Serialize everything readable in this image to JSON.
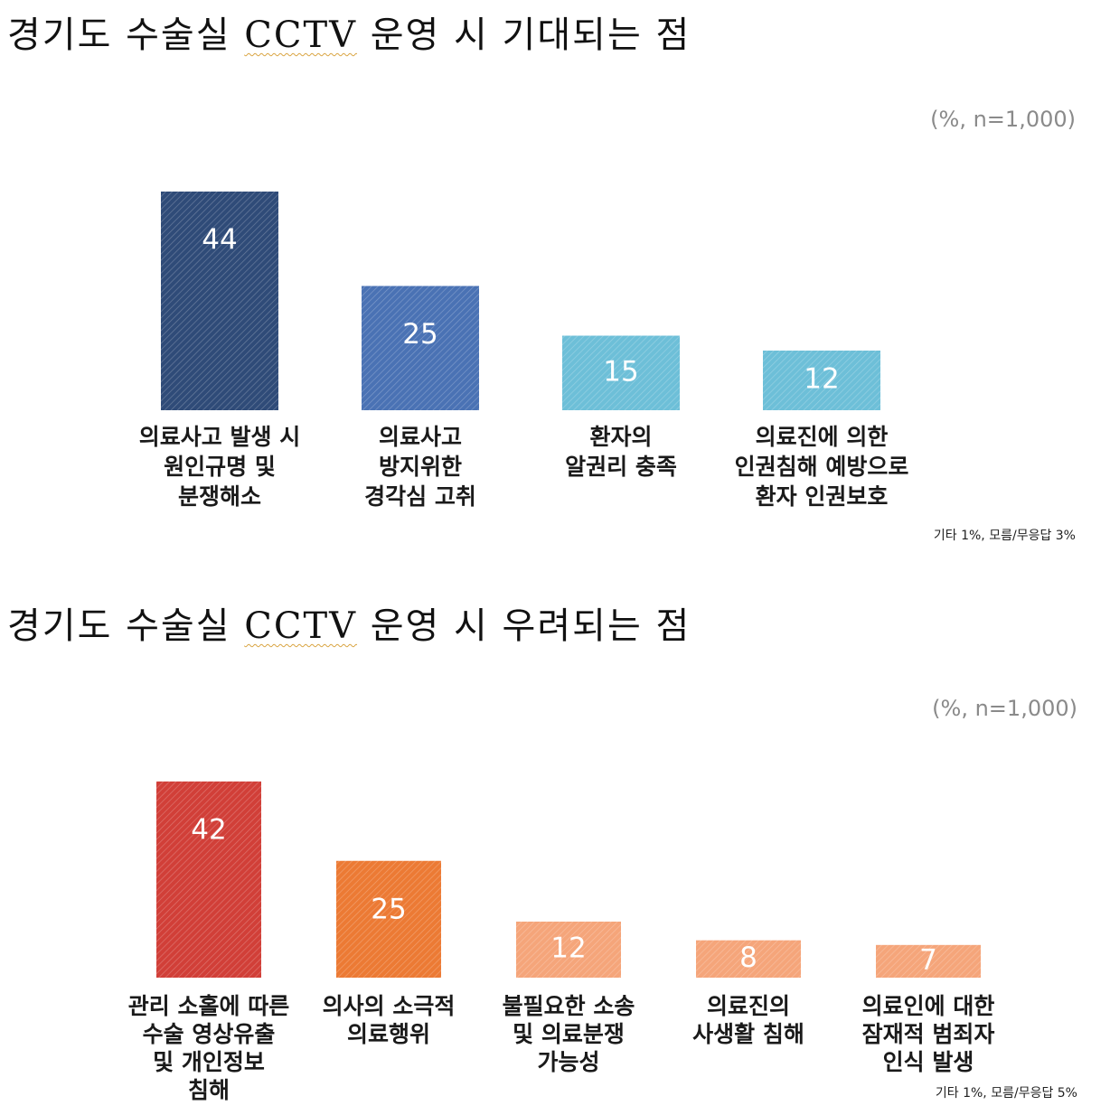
{
  "charts": [
    {
      "title_prefix": "경기도 수술실 ",
      "title_cctv": "CCTV",
      "title_suffix": " 운영 시 기대되는 점",
      "unit_note": "(%, n=1,000)",
      "footnote": "기타 1%, 모름/무응답 3%"
    },
    {
      "title_prefix": "경기도 수술실 ",
      "title_cctv": "CCTV",
      "title_suffix": " 운영 시 우려되는 점",
      "unit_note": "(%, n=1,000)",
      "footnote": "기타 1%, 모름/무응답 5%"
    }
  ],
  "chart_data": [
    {
      "type": "bar",
      "title": "경기도 수술실 CCTV 운영 시 기대되는 점",
      "unit": "(%, n=1,000)",
      "categories": [
        "의료사고 발생 시 원인규명 및 분쟁해소",
        "의료사고 방지위한 경각심 고취",
        "환자의 알권리 충족",
        "의료진에 의한 인권침해 예방으로 환자 인권보호"
      ],
      "category_lines": [
        [
          "의료사고 발생 시",
          "원인규명 및",
          "분쟁해소"
        ],
        [
          "의료사고",
          "방지위한",
          "경각심 고취"
        ],
        [
          "환자의",
          "알권리 충족"
        ],
        [
          "의료진에 의한",
          "인권침해 예방으로",
          "환자 인권보호"
        ]
      ],
      "values": [
        44,
        25,
        15,
        12
      ],
      "colors": [
        "#2f4b78",
        "#4a72b4",
        "#6dbfd8",
        "#6dbfd8"
      ],
      "note": "기타 1%, 모름/무응답 3%",
      "grid": false
    },
    {
      "type": "bar",
      "title": "경기도 수술실 CCTV 운영 시 우려되는 점",
      "unit": "(%, n=1,000)",
      "categories": [
        "관리 소홀에 따른 수술 영상유출 및 개인정보 침해",
        "의사의 소극적 의료행위",
        "불필요한 소송 및 의료분쟁 가능성",
        "의료진의 사생활 침해",
        "의료인에 대한 잠재적 범죄자 인식 발생"
      ],
      "category_lines": [
        [
          "관리 소홀에 따른",
          "수술 영상유출",
          "및 개인정보",
          "침해"
        ],
        [
          "의사의 소극적",
          "의료행위"
        ],
        [
          "불필요한 소송",
          "및 의료분쟁",
          "가능성"
        ],
        [
          "의료진의",
          "사생활 침해"
        ],
        [
          "의료인에 대한",
          "잠재적 범죄자",
          "인식 발생"
        ]
      ],
      "values": [
        42,
        25,
        12,
        8,
        7
      ],
      "colors": [
        "#d13f38",
        "#ec7a34",
        "#f5a57a",
        "#f5a57a",
        "#f5a57a"
      ],
      "note": "기타 1%, 모름/무응답 5%",
      "grid": false
    }
  ]
}
